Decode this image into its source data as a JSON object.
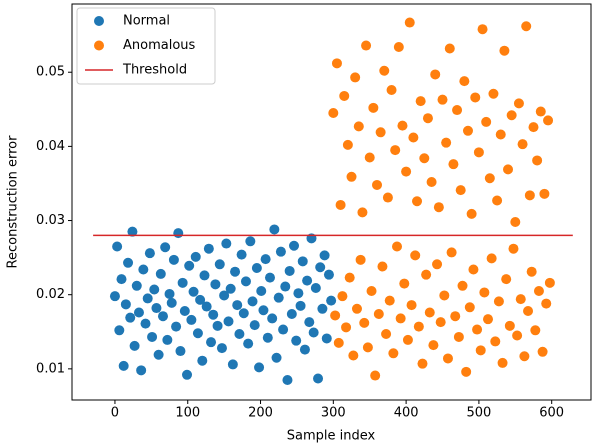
{
  "chart_data": {
    "type": "scatter",
    "xlabel": "Sample index",
    "ylabel": "Reconstruction error",
    "xlim": [
      -59,
      654
    ],
    "ylim": [
      0.0058,
      0.0592
    ],
    "xticks": [
      0,
      100,
      200,
      300,
      400,
      500,
      600
    ],
    "yticks": [
      0.01,
      0.02,
      0.03,
      0.04,
      0.05
    ],
    "legend": "upper left",
    "series": [
      {
        "name": "Normal",
        "type": "scatter",
        "color": "#1f77b4",
        "x": [
          0,
          3,
          6,
          9,
          12,
          15,
          18,
          21,
          24,
          27,
          30,
          33,
          36,
          39,
          42,
          45,
          48,
          51,
          54,
          57,
          60,
          63,
          66,
          69,
          72,
          75,
          78,
          81,
          84,
          87,
          90,
          93,
          96,
          99,
          102,
          105,
          108,
          111,
          114,
          117,
          120,
          123,
          126,
          129,
          132,
          135,
          138,
          141,
          144,
          147,
          150,
          153,
          156,
          159,
          162,
          165,
          168,
          171,
          174,
          177,
          180,
          183,
          186,
          189,
          192,
          195,
          198,
          201,
          204,
          207,
          210,
          213,
          216,
          219,
          222,
          225,
          228,
          231,
          234,
          237,
          240,
          243,
          246,
          249,
          252,
          255,
          258,
          261,
          264,
          267,
          270,
          273,
          276,
          279,
          282,
          285,
          288,
          291,
          294,
          297
        ],
        "values": [
          0.0198,
          0.0265,
          0.0152,
          0.0221,
          0.0104,
          0.0187,
          0.0243,
          0.0169,
          0.0285,
          0.0131,
          0.0212,
          0.0176,
          0.0098,
          0.0234,
          0.0161,
          0.0195,
          0.0256,
          0.0143,
          0.0207,
          0.0182,
          0.0119,
          0.0228,
          0.0171,
          0.0264,
          0.0139,
          0.0201,
          0.0189,
          0.0247,
          0.0157,
          0.0283,
          0.0124,
          0.0216,
          0.0178,
          0.0092,
          0.0239,
          0.0166,
          0.0204,
          0.0251,
          0.0148,
          0.0193,
          0.0111,
          0.0226,
          0.0184,
          0.0262,
          0.0136,
          0.0173,
          0.0214,
          0.0158,
          0.0241,
          0.0128,
          0.0199,
          0.0269,
          0.0164,
          0.0208,
          0.0106,
          0.0231,
          0.0186,
          0.0147,
          0.0254,
          0.0175,
          0.0218,
          0.0134,
          0.0272,
          0.0191,
          0.0159,
          0.0236,
          0.0102,
          0.0205,
          0.0179,
          0.0248,
          0.0142,
          0.0223,
          0.0168,
          0.0288,
          0.0115,
          0.0196,
          0.0258,
          0.0153,
          0.0211,
          0.0085,
          0.0232,
          0.0174,
          0.0266,
          0.0138,
          0.0202,
          0.0185,
          0.0245,
          0.0126,
          0.0219,
          0.0163,
          0.0276,
          0.0149,
          0.0209,
          0.0087,
          0.0237,
          0.0181,
          0.0253,
          0.0141,
          0.0227,
          0.0192
        ]
      },
      {
        "name": "Anomalous",
        "type": "scatter",
        "color": "#ff7f0e",
        "x": [
          300,
          302.5,
          305,
          307.5,
          310,
          312.5,
          315,
          317.5,
          320,
          322.5,
          325,
          327.5,
          330,
          332.5,
          335,
          337.5,
          340,
          342.5,
          345,
          347.5,
          350,
          352.5,
          355,
          357.5,
          360,
          362.5,
          365,
          367.5,
          370,
          372.5,
          375,
          377.5,
          380,
          382.5,
          385,
          387.5,
          390,
          392.5,
          395,
          397.5,
          400,
          402.5,
          405,
          407.5,
          410,
          412.5,
          415,
          417.5,
          420,
          422.5,
          425,
          427.5,
          430,
          432.5,
          435,
          437.5,
          440,
          442.5,
          445,
          447.5,
          450,
          452.5,
          455,
          457.5,
          460,
          462.5,
          465,
          467.5,
          470,
          472.5,
          475,
          477.5,
          480,
          482.5,
          485,
          487.5,
          490,
          492.5,
          495,
          497.5,
          500,
          502.5,
          505,
          507.5,
          510,
          512.5,
          515,
          517.5,
          520,
          522.5,
          525,
          527.5,
          530,
          532.5,
          535,
          537.5,
          540,
          542.5,
          545,
          547.5,
          550,
          552.5,
          555,
          557.5,
          560,
          562.5,
          565,
          567.5,
          570,
          572.5,
          575,
          577.5,
          580,
          582.5,
          585,
          587.5,
          590,
          592.5,
          595,
          597.5
        ],
        "values": [
          0.0445,
          0.0172,
          0.0512,
          0.0135,
          0.0321,
          0.0198,
          0.0468,
          0.0156,
          0.0402,
          0.0223,
          0.0359,
          0.0118,
          0.0493,
          0.0181,
          0.0427,
          0.0247,
          0.0311,
          0.0162,
          0.0536,
          0.0129,
          0.0385,
          0.0205,
          0.0452,
          0.0091,
          0.0348,
          0.0174,
          0.0419,
          0.0238,
          0.0502,
          0.0147,
          0.0331,
          0.0192,
          0.0476,
          0.0121,
          0.0395,
          0.0265,
          0.0534,
          0.0168,
          0.0428,
          0.0215,
          0.0366,
          0.0139,
          0.0567,
          0.0186,
          0.0412,
          0.0253,
          0.0326,
          0.0157,
          0.0461,
          0.0107,
          0.0384,
          0.0227,
          0.0438,
          0.0176,
          0.0352,
          0.0132,
          0.0497,
          0.0241,
          0.0318,
          0.0163,
          0.0463,
          0.0199,
          0.0405,
          0.0114,
          0.0532,
          0.0257,
          0.0376,
          0.0171,
          0.0449,
          0.0143,
          0.0341,
          0.0212,
          0.0488,
          0.0096,
          0.0421,
          0.0183,
          0.0309,
          0.0234,
          0.0466,
          0.0153,
          0.0392,
          0.0125,
          0.0558,
          0.0203,
          0.0433,
          0.0167,
          0.0357,
          0.0249,
          0.0471,
          0.0137,
          0.0327,
          0.0191,
          0.0416,
          0.0108,
          0.0529,
          0.0221,
          0.0369,
          0.0158,
          0.0442,
          0.0262,
          0.0298,
          0.0145,
          0.0458,
          0.0194,
          0.0403,
          0.0117,
          0.0562,
          0.0178,
          0.0334,
          0.0231,
          0.0426,
          0.0152,
          0.0381,
          0.0205,
          0.0447,
          0.0123,
          0.0336,
          0.0188,
          0.0435,
          0.0216
        ]
      },
      {
        "name": "Threshold",
        "type": "line",
        "color": "#d62728",
        "x": [
          -30,
          629
        ],
        "values": [
          0.028,
          0.028
        ]
      }
    ]
  }
}
